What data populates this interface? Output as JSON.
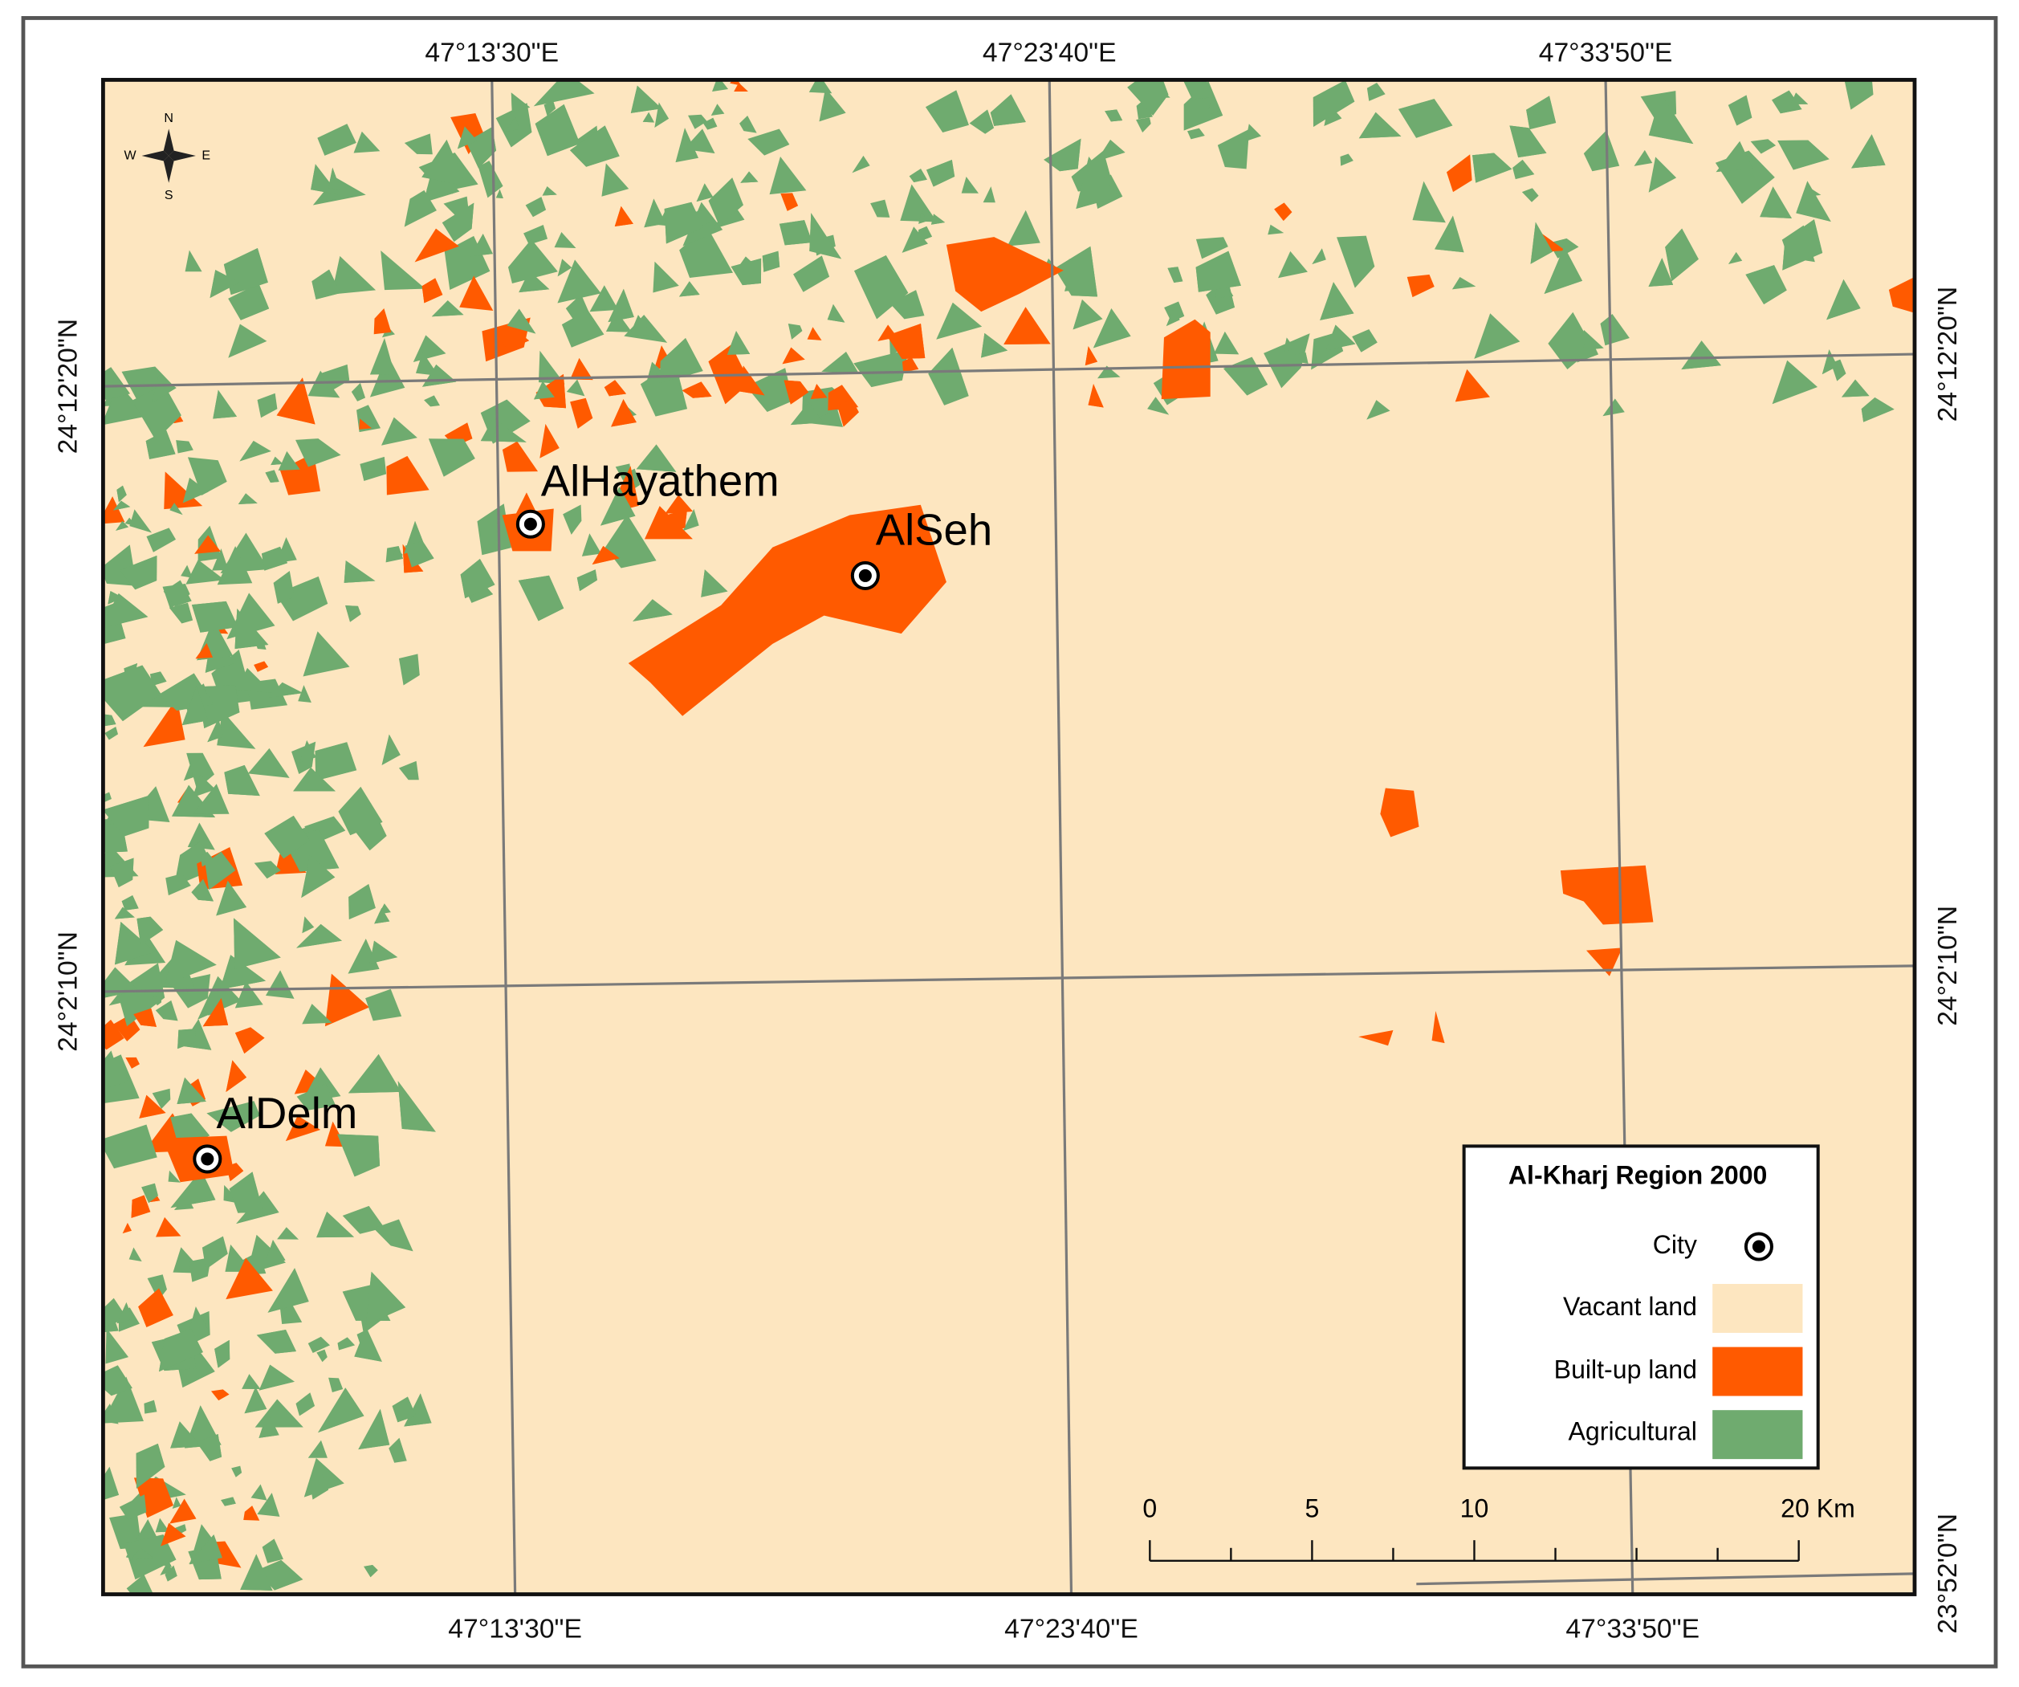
{
  "map": {
    "top_labels": [
      "47°13'30\"E",
      "47°23'40\"E",
      "47°33'50\"E"
    ],
    "bottom_labels": [
      "47°13'30\"E",
      "47°23'40\"E",
      "47°33'50\"E"
    ],
    "left_labels": [
      "24°12'20\"N",
      "24°2'10\"N"
    ],
    "right_labels": [
      "24°12'20\"N",
      "24°2'10\"N",
      "23°52'0\"N"
    ],
    "compass": {
      "n": "N",
      "e": "E",
      "s": "S",
      "w": "W"
    },
    "cities": [
      {
        "name": "AlHayathem"
      },
      {
        "name": "AlSeh"
      },
      {
        "name": "AlDelm"
      }
    ],
    "legend": {
      "title": "Al-Kharj Region 2000",
      "items": [
        {
          "label": "City"
        },
        {
          "label": "Vacant land",
          "color": "#fde6c0"
        },
        {
          "label": "Built-up land",
          "color": "#ff5a00"
        },
        {
          "label": "Agricultural",
          "color": "#6fab6f"
        }
      ]
    },
    "scale_bar": {
      "labels": [
        "0",
        "5",
        "10",
        "20 Km"
      ]
    }
  }
}
